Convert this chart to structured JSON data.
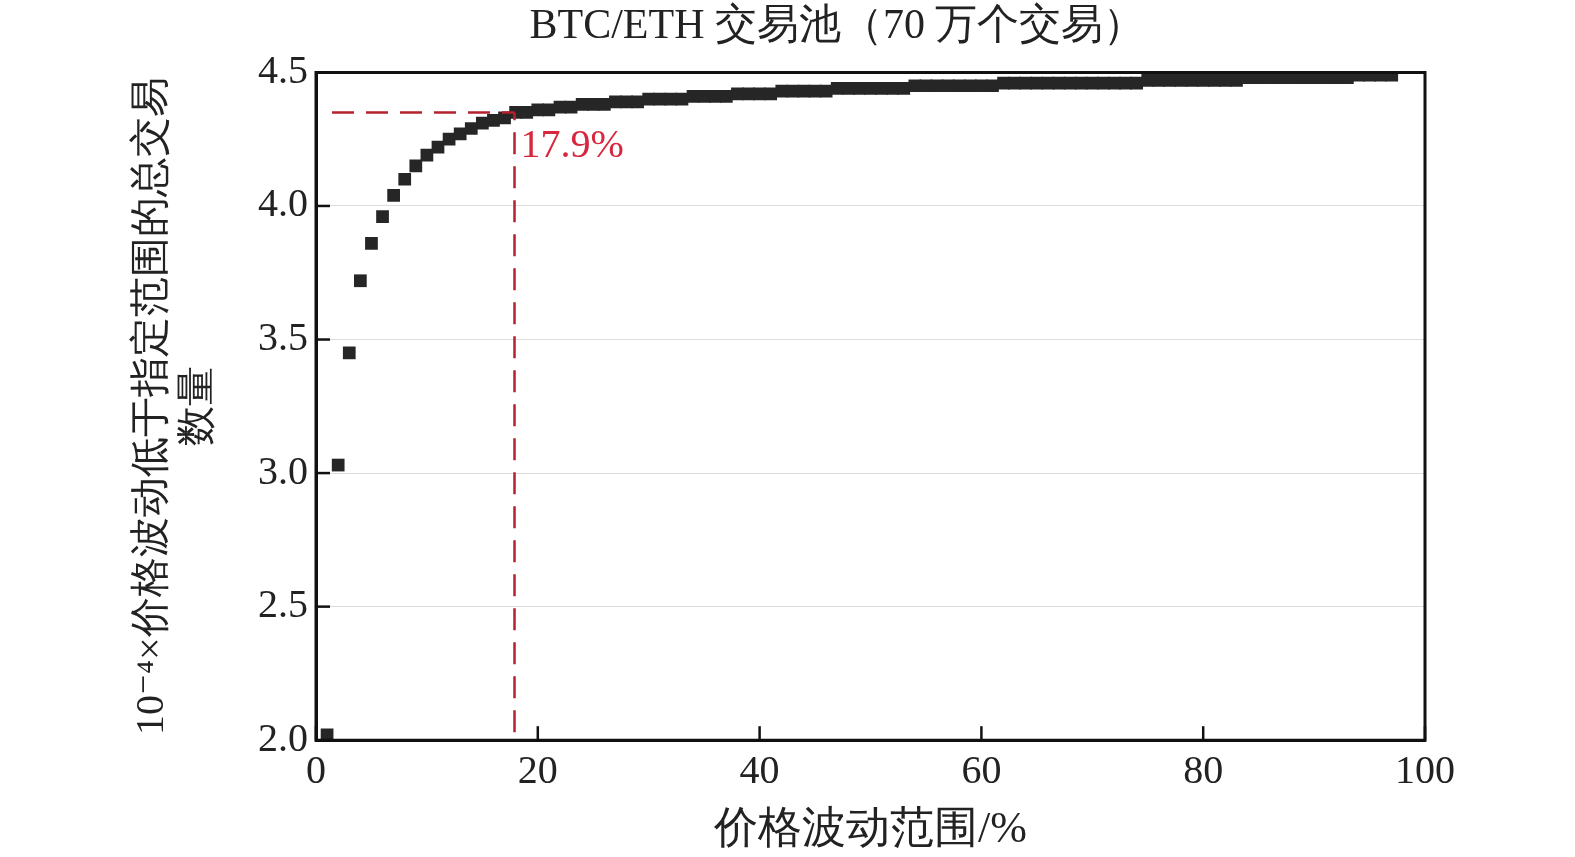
{
  "chart_data": {
    "type": "scatter",
    "title": "BTC/ETH 交易池（70 万个交易）",
    "xlabel": "价格波动范围/%",
    "ylabel": "10⁻⁴×价格波动低于指定范围的总交易数量",
    "x": [
      1,
      2,
      3,
      4,
      5,
      6,
      7,
      8,
      9,
      10,
      11,
      12,
      13,
      14,
      15,
      16,
      17,
      18,
      19,
      20,
      21,
      22,
      23,
      24,
      25,
      26,
      27,
      28,
      29,
      30,
      31,
      32,
      33,
      34,
      35,
      36,
      37,
      38,
      39,
      40,
      41,
      42,
      43,
      44,
      45,
      46,
      47,
      48,
      49,
      50,
      51,
      52,
      53,
      54,
      55,
      56,
      57,
      58,
      59,
      60,
      61,
      62,
      63,
      64,
      65,
      66,
      67,
      68,
      69,
      70,
      71,
      72,
      73,
      74,
      75,
      76,
      77,
      78,
      79,
      80,
      81,
      82,
      83,
      84,
      85,
      86,
      87,
      88,
      89,
      90,
      91,
      92,
      93,
      94,
      95,
      96,
      97
    ],
    "series": [
      {
        "color": "#262626",
        "values": [
          2.02,
          3.03,
          3.45,
          3.72,
          3.86,
          3.96,
          4.04,
          4.1,
          4.15,
          4.19,
          4.22,
          4.25,
          4.27,
          4.29,
          4.31,
          4.32,
          4.33,
          4.35,
          4.35,
          4.36,
          4.36,
          4.37,
          4.37,
          4.38,
          4.38,
          4.38,
          4.39,
          4.39,
          4.39,
          4.4,
          4.4,
          4.4,
          4.4,
          4.41,
          4.41,
          4.41,
          4.41,
          4.42,
          4.42,
          4.42,
          4.42,
          4.43,
          4.43,
          4.43,
          4.43,
          4.43,
          4.44,
          4.44,
          4.44,
          4.44,
          4.44,
          4.44,
          4.44,
          4.45,
          4.45,
          4.45,
          4.45,
          4.45,
          4.45,
          4.45,
          4.45,
          4.46,
          4.46,
          4.46,
          4.46,
          4.46,
          4.46,
          4.46,
          4.46,
          4.46,
          4.46,
          4.46,
          4.46,
          4.46,
          4.47,
          4.47,
          4.47,
          4.47,
          4.47,
          4.47,
          4.47,
          4.47,
          4.47,
          4.48,
          4.48,
          4.48,
          4.48,
          4.48,
          4.48,
          4.48,
          4.48,
          4.48,
          4.48,
          4.49,
          4.49,
          4.49,
          4.49
        ]
      }
    ],
    "marker": "square",
    "xlim": [
      0,
      100
    ],
    "xticks": [
      0,
      20,
      40,
      60,
      80,
      100
    ],
    "ylim": [
      2.0,
      4.5
    ],
    "yticks": [
      {
        "value": 2.0,
        "label": "2.0"
      },
      {
        "value": 2.5,
        "label": "2.5"
      },
      {
        "value": 3.0,
        "label": "3.0"
      },
      {
        "value": 3.5,
        "label": "3.5"
      },
      {
        "value": 4.0,
        "label": "4.0"
      },
      {
        "value": 4.5,
        "label": "4.5"
      }
    ],
    "grid": "y",
    "ref_lines": [
      {
        "axis": "x",
        "value": 17.9,
        "label": "17.9%",
        "color": "#b5212e",
        "line_style": "dashed"
      },
      {
        "axis": "y",
        "value": 4.35,
        "color": "#b5212e",
        "line_style": "dashed"
      }
    ]
  }
}
